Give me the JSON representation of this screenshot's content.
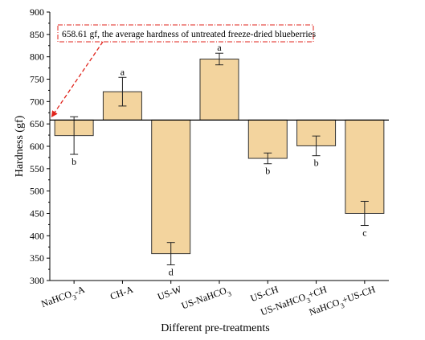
{
  "chart_data": {
    "type": "bar",
    "xlabel": "Different pre-treatments",
    "ylabel": "Hardness (gf)",
    "ylim": [
      300,
      900
    ],
    "yticks": [
      300,
      350,
      400,
      450,
      500,
      550,
      600,
      650,
      700,
      750,
      800,
      850,
      900
    ],
    "baseline": 658.61,
    "categories": [
      {
        "main": "NaHCO",
        "sub": "3",
        "tail": "-A"
      },
      {
        "main": "CH-A",
        "sub": "",
        "tail": ""
      },
      {
        "main": "US-W",
        "sub": "",
        "tail": ""
      },
      {
        "main": "US-NaHCO",
        "sub": "3",
        "tail": ""
      },
      {
        "main": "US-CH",
        "sub": "",
        "tail": ""
      },
      {
        "main": "US-NaHCO",
        "sub": "3",
        "tail": "+CH"
      },
      {
        "main": "NaHCO",
        "sub": "3",
        "tail": "+US-CH"
      }
    ],
    "values": [
      624,
      722,
      360,
      795,
      573,
      601,
      450
    ],
    "errors": [
      42,
      32,
      25,
      13,
      12,
      22,
      27
    ],
    "significance_letters": [
      "b",
      "a",
      "d",
      "a",
      "b",
      "b",
      "c"
    ],
    "annotation": "658.61 gf, the average hardness of untreated freeze-dried blueberries",
    "colors": {
      "bar_fill": "#f3d49e",
      "bar_stroke": "#333333",
      "annotation": "#e0231b"
    },
    "grid": false,
    "legend": "none"
  }
}
